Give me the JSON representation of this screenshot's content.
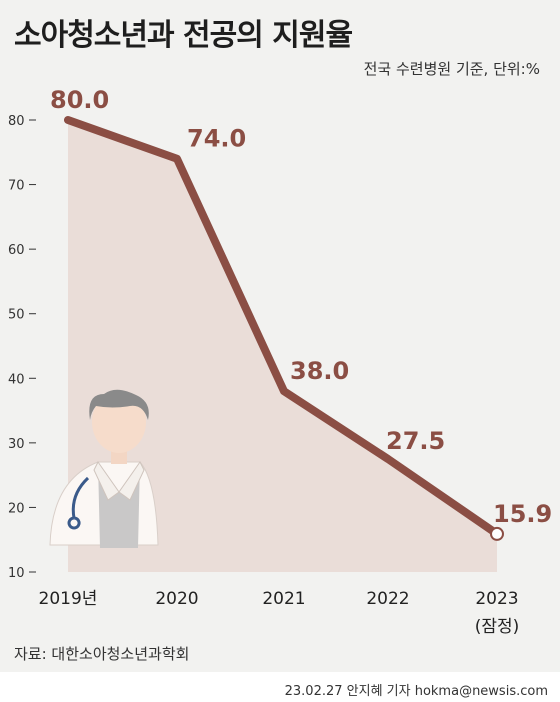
{
  "title": "소아청소년과 전공의 지원율",
  "subtitle": "전국 수련병원 기준, 단위:%",
  "source": "자료: 대한소아청소년과학회",
  "credit": "23.02.27 안지혜 기자 hokma@newsis.com",
  "colors": {
    "line": "#8b4e44",
    "area": "#eaddd8",
    "background": "#f2f2f0"
  },
  "chart_data": {
    "type": "area",
    "categories": [
      "2019년",
      "2020",
      "2021",
      "2022",
      "2023"
    ],
    "category_notes": [
      "",
      "",
      "",
      "",
      "(잠정)"
    ],
    "values": [
      80.0,
      74.0,
      38.0,
      27.5,
      15.9
    ],
    "data_labels": [
      "80.0",
      "74.0",
      "38.0",
      "27.5",
      "15.9"
    ],
    "yticks": [
      10,
      20,
      30,
      40,
      50,
      60,
      70,
      80
    ],
    "ylim": [
      10,
      80
    ],
    "grid": false,
    "last_point_hollow_marker": true
  }
}
